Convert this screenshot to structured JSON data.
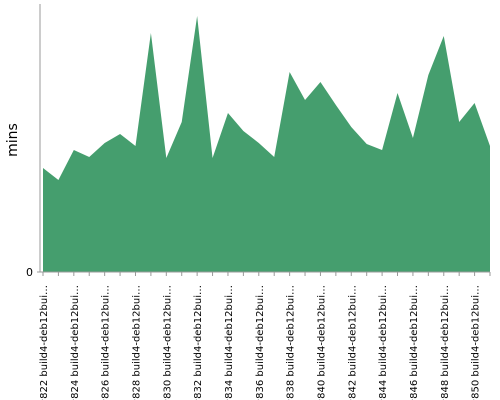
{
  "chart_data": {
    "type": "area",
    "y_label": "mins",
    "categories": [
      "#822 build4-deb12bui…",
      null,
      "#824 build4-deb12bui…",
      null,
      "#826 build4-deb12bui…",
      null,
      "#828 build4-deb12bui…",
      null,
      "#830 build4-deb12bui…",
      null,
      "#832 build4-deb12bui…",
      null,
      "#834 build4-deb12bui…",
      null,
      "#836 build4-deb12bui…",
      null,
      "#838 build4-deb12bui…",
      null,
      "#840 build4-deb12bui…",
      null,
      "#842 build4-deb12bui…",
      null,
      "#844 build4-deb12bui…",
      null,
      "#846 build4-deb12bui…",
      null,
      "#848 build4-deb12bui…",
      null,
      "#850 build4-deb12bui…",
      null
    ],
    "values": [
      104,
      92,
      122,
      115,
      129,
      138,
      126,
      239,
      114,
      150,
      256,
      114,
      159,
      141,
      129,
      115,
      200,
      172,
      190,
      167,
      145,
      128,
      122,
      179,
      134,
      197,
      236,
      150,
      169,
      126
    ],
    "color": "#459e6e",
    "ylim": [
      0,
      268
    ],
    "yticks": [
      0
    ]
  }
}
